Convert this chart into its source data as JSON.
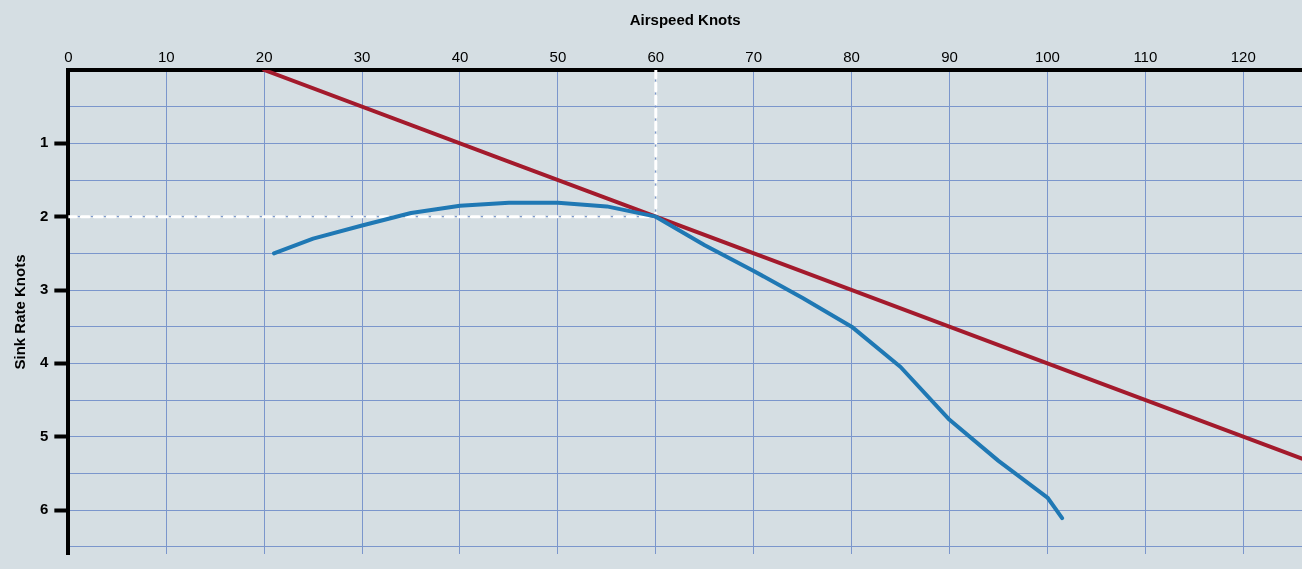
{
  "chart_data": {
    "type": "line",
    "xlabel": "Airspeed Knots",
    "ylabel": "Sink Rate Knots",
    "xlim": [
      0,
      126
    ],
    "xticks": [
      0,
      10,
      20,
      30,
      40,
      50,
      60,
      70,
      80,
      90,
      100,
      110,
      120
    ],
    "ylim": [
      6.6,
      0
    ],
    "yticks": [
      {
        "value": 0,
        "label": null
      },
      {
        "value": 0.5,
        "label": null
      },
      1,
      {
        "value": 1.5,
        "label": null
      },
      2,
      {
        "value": 2.5,
        "label": null
      },
      3,
      {
        "value": 3.5,
        "label": null
      },
      4,
      {
        "value": 4.5,
        "label": null
      },
      5,
      {
        "value": 5.5,
        "label": null
      },
      6,
      {
        "value": 6.5,
        "label": null
      }
    ],
    "grid": true,
    "legend": false,
    "marker": "none",
    "line_style": "solid",
    "series": [
      {
        "color": "#1f78b4",
        "x": [
          21,
          25,
          30,
          35,
          40,
          45,
          50,
          55,
          60,
          65,
          70,
          75,
          80,
          85,
          90,
          95,
          100,
          101.5
        ],
        "values": [
          2.5,
          2.3,
          2.12,
          1.95,
          1.85,
          1.81,
          1.81,
          1.86,
          2.0,
          2.39,
          2.74,
          3.11,
          3.5,
          4.05,
          4.77,
          5.33,
          5.83,
          6.11
        ]
      },
      {
        "color": "#a31a2c",
        "x": [
          20,
          60,
          126
        ],
        "values": [
          0,
          2,
          5.3
        ]
      },
      {
        "color": "#ffffff",
        "line_style": "dashed",
        "x": [
          0,
          60
        ],
        "values": [
          2,
          2
        ]
      },
      {
        "color": "#ffffff",
        "line_style": "dashed",
        "x": [
          60,
          60
        ],
        "values": [
          0,
          2
        ]
      }
    ]
  }
}
